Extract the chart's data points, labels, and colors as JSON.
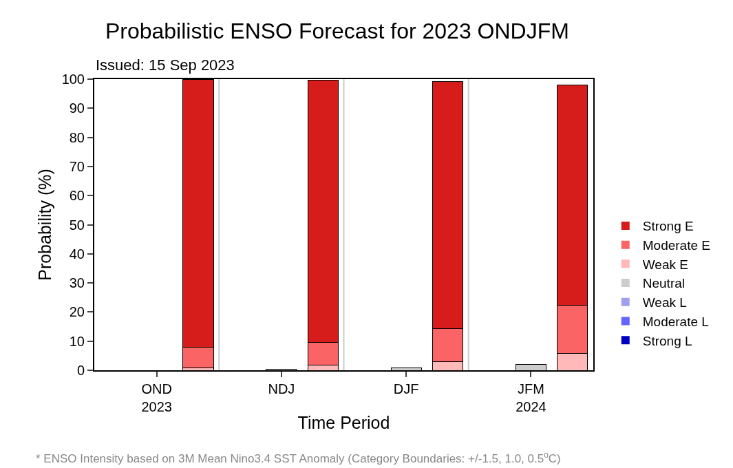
{
  "chart_data": {
    "type": "bar",
    "title": "Probabilistic ENSO Forecast for 2023 ONDJFM",
    "subtitle": "Issued: 15 Sep 2023",
    "xlabel": "Time Period",
    "ylabel": "Probability (%)",
    "categories": [
      null,
      "OND\n2023",
      null,
      null,
      "NDJ",
      null,
      null,
      "DJF",
      null,
      null,
      "JFM\n2024",
      null
    ],
    "stacked": true,
    "series": [
      {
        "name": "Strong L",
        "color": "#0000c0",
        "values": [
          0,
          null,
          null,
          0,
          null,
          null,
          0,
          null,
          null,
          0,
          null,
          null
        ]
      },
      {
        "name": "Moderate L",
        "color": "#6464ff",
        "values": [
          0,
          null,
          null,
          0,
          null,
          null,
          0,
          null,
          null,
          0,
          null,
          null
        ]
      },
      {
        "name": "Weak L",
        "color": "#a0a0f0",
        "values": [
          0,
          null,
          null,
          0,
          null,
          null,
          0,
          null,
          null,
          0,
          null,
          null
        ]
      },
      {
        "name": "Neutral",
        "color": "#cccccc",
        "values": [
          null,
          0,
          null,
          null,
          0.3,
          null,
          null,
          0.9,
          null,
          null,
          2.0,
          null
        ]
      },
      {
        "name": "Weak E",
        "color": "#ffb9b9",
        "values": [
          null,
          null,
          0.8,
          null,
          null,
          1.7,
          null,
          null,
          2.9,
          null,
          null,
          5.7
        ]
      },
      {
        "name": "Moderate E",
        "color": "#fa6464",
        "values": [
          null,
          null,
          7.2,
          null,
          null,
          7.9,
          null,
          null,
          11.5,
          null,
          null,
          16.7
        ]
      },
      {
        "name": "Strong E",
        "color": "#d71c1c",
        "values": [
          null,
          null,
          92,
          null,
          null,
          90.1,
          null,
          null,
          84.7,
          null,
          null,
          75.6
        ]
      }
    ],
    "ylim": [
      0,
      100
    ],
    "yticks": [
      0,
      10,
      20,
      30,
      40,
      50,
      60,
      70,
      80,
      90,
      100
    ],
    "grid": false,
    "legend": "right",
    "annotations": [
      "* ENSO Intensity based on 3M Mean Nino3.4 SST Anomaly (Category Boundaries: +/-1.5, 1.0, 0.5$^{o}$C)"
    ]
  }
}
